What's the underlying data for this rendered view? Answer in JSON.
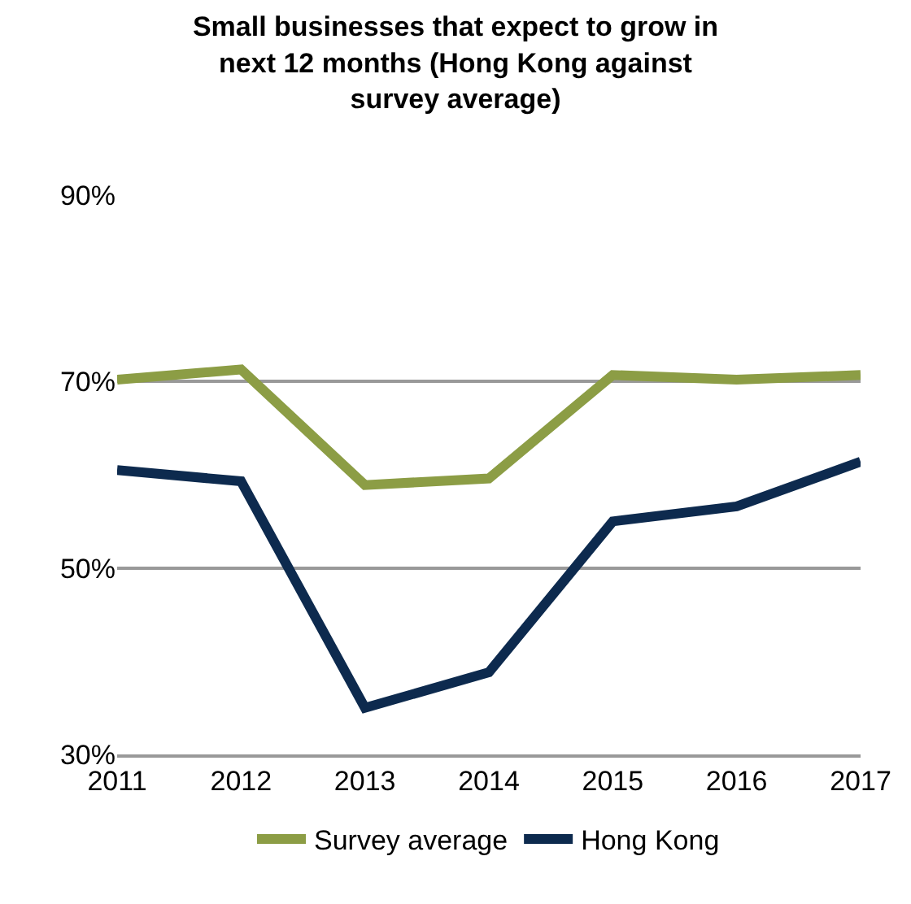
{
  "chart_data": {
    "type": "line",
    "title": "Small businesses that expect to grow in next 12 months (Hong Kong against survey average)",
    "x": [
      2011,
      2012,
      2013,
      2014,
      2015,
      2016,
      2017
    ],
    "series": [
      {
        "name": "Survey average",
        "color": "#8c9d45",
        "values": [
          70.2,
          71.3,
          58.9,
          59.6,
          70.7,
          70.2,
          70.7
        ]
      },
      {
        "name": "Hong Kong",
        "color": "#0d2a4e",
        "values": [
          60.5,
          59.3,
          35.0,
          38.8,
          55.0,
          56.6,
          61.4
        ]
      }
    ],
    "xlim": [
      2011,
      2017
    ],
    "xticks": [
      2011,
      2012,
      2013,
      2014,
      2015,
      2016,
      2017
    ],
    "ylim": [
      30,
      90
    ],
    "yticks": [
      {
        "value": 30,
        "label": "30%"
      },
      {
        "value": 50,
        "label": "50%"
      },
      {
        "value": 70,
        "label": "70%"
      },
      {
        "value": 90,
        "label": "90%"
      }
    ],
    "grid": "y",
    "legend": "bottom",
    "marker": "none",
    "line_style": "solid"
  }
}
